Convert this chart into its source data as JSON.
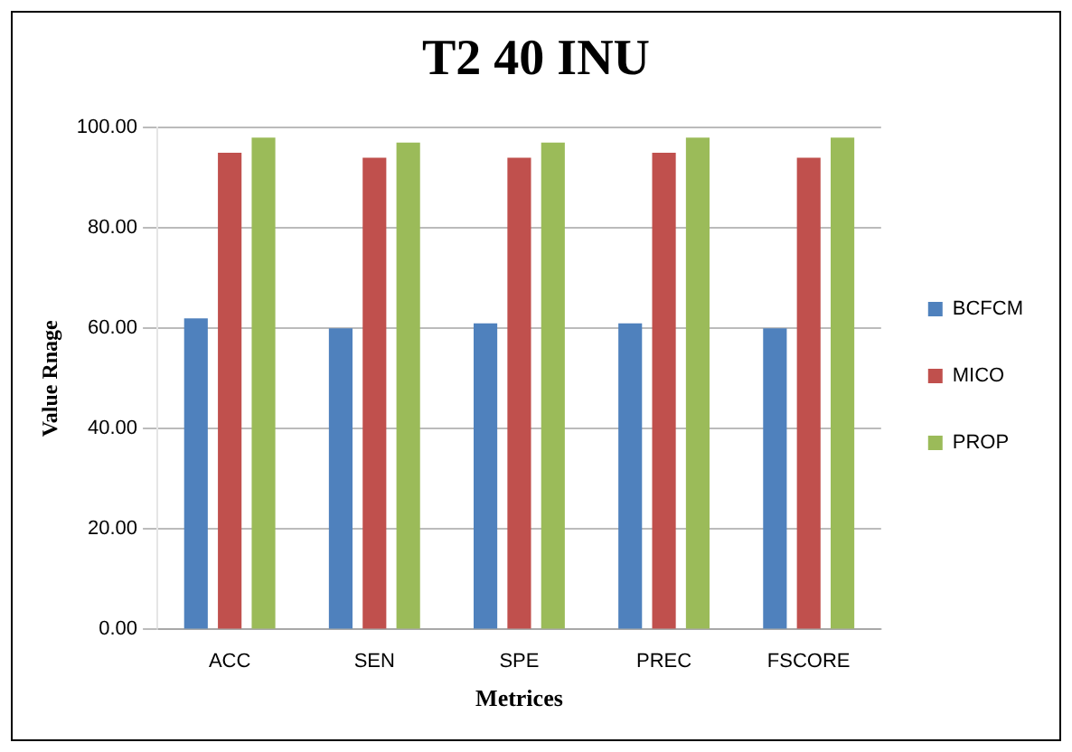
{
  "chart_data": {
    "type": "bar",
    "title": "T2 40 INU",
    "xlabel": "Metrices",
    "ylabel": "Value Rnage",
    "categories": [
      "ACC",
      "SEN",
      "SPE",
      "PREC",
      "FSCORE"
    ],
    "series": [
      {
        "name": "BCFCM",
        "color": "#4f81bd",
        "values": [
          62,
          60,
          61,
          61,
          60
        ]
      },
      {
        "name": "MICO",
        "color": "#c0504d",
        "values": [
          95,
          94,
          94,
          95,
          94
        ]
      },
      {
        "name": "PROP",
        "color": "#9bbb59",
        "values": [
          98,
          97,
          97,
          98,
          98
        ]
      }
    ],
    "ylim": [
      0,
      100
    ],
    "yticks": [
      {
        "value": 0,
        "label": "0.00"
      },
      {
        "value": 20,
        "label": "20.00"
      },
      {
        "value": 40,
        "label": "40.00"
      },
      {
        "value": 60,
        "label": "60.00"
      },
      {
        "value": 80,
        "label": "80.00"
      },
      {
        "value": 100,
        "label": "100.00"
      }
    ],
    "grid": "y",
    "legend": "right"
  }
}
